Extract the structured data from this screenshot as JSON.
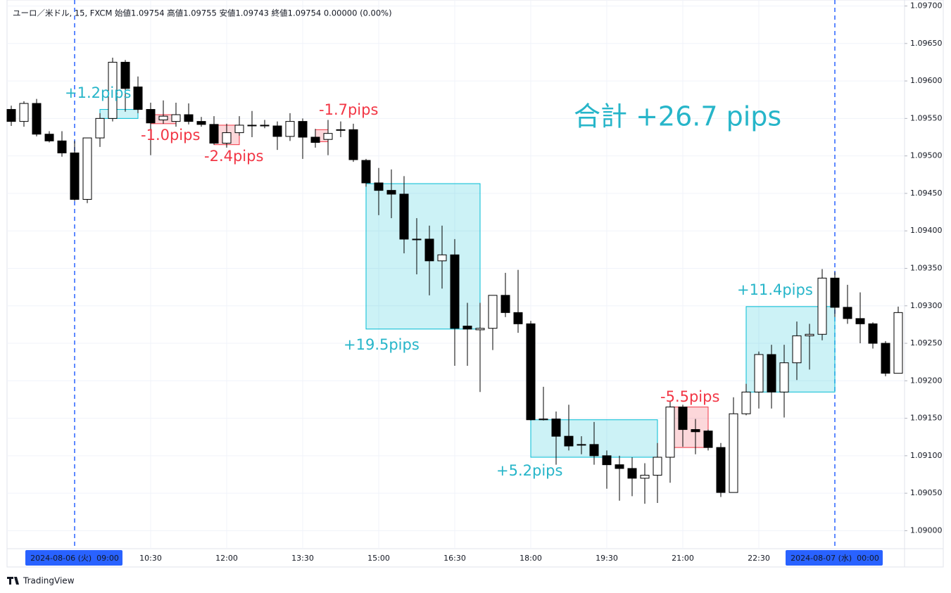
{
  "chart_data": {
    "type": "candlestick",
    "legend": "ユーロ／米ドル, 15, FXCM  始値1.09754  高値1.09755  安値1.09743  終値1.09754  0.00000 (0.00%)",
    "total": "合計 +26.7 pips",
    "branding": "TradingView",
    "categories": [
      null,
      null,
      null,
      null,
      null,
      "2024-08-06 (火)  09:00",
      null,
      null,
      null,
      null,
      null,
      "10:30",
      null,
      null,
      null,
      null,
      null,
      "12:00",
      null,
      null,
      null,
      null,
      null,
      "13:30",
      null,
      null,
      null,
      null,
      null,
      "15:00",
      null,
      null,
      null,
      null,
      null,
      "16:30",
      null,
      null,
      null,
      null,
      null,
      "18:00",
      null,
      null,
      null,
      null,
      null,
      "19:30",
      null,
      null,
      null,
      null,
      null,
      "21:00",
      null,
      null,
      null,
      null,
      null,
      "22:30",
      null,
      null,
      null,
      null,
      null,
      "2024-08-07 (水)  00:00",
      null,
      null,
      null,
      null,
      null
    ],
    "open": [
      1.09562,
      1.09546,
      1.0957,
      1.09529,
      1.0952,
      1.09504,
      1.09442,
      1.09524,
      1.0955,
      1.09625,
      1.09592,
      1.09562,
      1.09548,
      1.09546,
      1.09555,
      1.09546,
      1.09542,
      1.09517,
      1.09531,
      1.09541,
      1.09541,
      1.0954,
      1.09526,
      1.09546,
      1.09525,
      1.09522,
      1.09535,
      1.09535,
      1.09494,
      1.09464,
      1.09454,
      1.09449,
      1.09389,
      1.09389,
      1.0936,
      1.09368,
      1.09273,
      1.09268,
      1.0927,
      1.09314,
      1.09291,
      1.09276,
      1.09148,
      1.09149,
      1.09126,
      1.09115,
      1.09115,
      1.091,
      1.09088,
      1.09083,
      1.0907,
      1.09074,
      1.09098,
      1.09165,
      1.09135,
      1.09133,
      1.09111,
      1.09051,
      1.09156,
      1.09185,
      1.09235,
      1.09185,
      1.09224,
      1.0926,
      1.09262,
      1.09337,
      1.09298,
      1.09283,
      1.09276,
      1.0925,
      1.0921
    ],
    "high": [
      1.09567,
      1.09573,
      1.09576,
      1.09533,
      1.09533,
      1.0952,
      1.09524,
      1.09557,
      1.09631,
      1.09628,
      1.09606,
      1.09571,
      1.09574,
      1.09571,
      1.0957,
      1.09552,
      1.09553,
      1.09543,
      1.09553,
      1.0956,
      1.09548,
      1.09546,
      1.09557,
      1.0955,
      1.09536,
      1.09548,
      1.09546,
      1.09543,
      1.09496,
      1.09484,
      1.09482,
      1.09473,
      1.09417,
      1.09407,
      1.09407,
      1.09389,
      1.09304,
      1.09304,
      1.09314,
      1.09344,
      1.09348,
      1.0928,
      1.09192,
      1.09159,
      1.09168,
      1.09126,
      1.09145,
      1.09107,
      1.091,
      1.09098,
      1.0909,
      1.09117,
      1.09173,
      1.09168,
      1.09149,
      1.09135,
      1.09117,
      1.09178,
      1.09196,
      1.09239,
      1.09248,
      1.09248,
      1.09279,
      1.09276,
      1.09349,
      1.09345,
      1.09328,
      1.09318,
      1.09278,
      1.09253,
      1.09299
    ],
    "low": [
      1.0954,
      1.09539,
      1.09526,
      1.09518,
      1.09499,
      1.0944,
      1.09437,
      1.09512,
      1.09546,
      1.09559,
      1.09557,
      1.09501,
      1.09543,
      1.09539,
      1.09542,
      1.09539,
      1.09515,
      1.09511,
      1.09527,
      1.09525,
      1.09537,
      1.09508,
      1.0952,
      1.09496,
      1.09511,
      1.09501,
      1.09525,
      1.09492,
      1.09459,
      1.09421,
      1.09417,
      1.0937,
      1.09342,
      1.09314,
      1.09323,
      1.0922,
      1.0922,
      1.09185,
      1.09241,
      1.09285,
      1.09264,
      1.09147,
      1.09147,
      1.09088,
      1.09107,
      1.09102,
      1.09088,
      1.09056,
      1.0904,
      1.09046,
      1.09036,
      1.09037,
      1.09064,
      1.09112,
      1.09102,
      1.09107,
      1.09045,
      1.09051,
      1.09154,
      1.09163,
      1.09163,
      1.09151,
      1.09201,
      1.09215,
      1.09254,
      1.09285,
      1.09276,
      1.0925,
      1.09243,
      1.09206,
      1.0921
    ],
    "close": [
      1.09546,
      1.0957,
      1.09529,
      1.0952,
      1.09504,
      1.09442,
      1.09524,
      1.0955,
      1.09625,
      1.0959,
      1.09562,
      1.09544,
      1.09553,
      1.09555,
      1.09546,
      1.09542,
      1.09517,
      1.09531,
      1.09541,
      1.09541,
      1.0954,
      1.09526,
      1.09546,
      1.09525,
      1.09518,
      1.0953,
      1.09535,
      1.09495,
      1.09464,
      1.09454,
      1.09449,
      1.09389,
      1.09389,
      1.0936,
      1.09368,
      1.0927,
      1.09269,
      1.0927,
      1.09314,
      1.09291,
      1.09276,
      1.09148,
      1.09149,
      1.09126,
      1.09113,
      1.09115,
      1.091,
      1.09088,
      1.09083,
      1.0907,
      1.09074,
      1.09098,
      1.09165,
      1.09135,
      1.09132,
      1.09111,
      1.09051,
      1.09156,
      1.09185,
      1.09235,
      1.09185,
      1.09224,
      1.0926,
      1.09262,
      1.09337,
      1.09298,
      1.09283,
      1.09276,
      1.0925,
      1.0921,
      1.09291
    ],
    "ylim": [
      1.08976,
      1.09708
    ],
    "yticks": [
      {
        "value": 1.09,
        "label": "1.09000"
      },
      {
        "value": 1.0905,
        "label": "1.09050"
      },
      {
        "value": 1.091,
        "label": "1.09100"
      },
      {
        "value": 1.0915,
        "label": "1.09150"
      },
      {
        "value": 1.092,
        "label": "1.09200"
      },
      {
        "value": 1.0925,
        "label": "1.09250"
      },
      {
        "value": 1.093,
        "label": "1.09300"
      },
      {
        "value": 1.0935,
        "label": "1.09350"
      },
      {
        "value": 1.094,
        "label": "1.09400"
      },
      {
        "value": 1.0945,
        "label": "1.09450"
      },
      {
        "value": 1.095,
        "label": "1.09500"
      },
      {
        "value": 1.0955,
        "label": "1.09550"
      },
      {
        "value": 1.096,
        "label": "1.09600"
      },
      {
        "value": 1.0965,
        "label": "1.09650"
      },
      {
        "value": 1.097,
        "label": "1.09700"
      }
    ],
    "grid": true,
    "trades": [
      {
        "label": "+1.2pips",
        "high": 1.09562,
        "low": 1.0955,
        "color": "#00bcd4"
      },
      {
        "label": "-1.0pips",
        "high": 1.09555,
        "low": 1.09543,
        "color": "#f23645"
      },
      {
        "label": "-2.4pips",
        "high": 1.09541,
        "low": 1.09515,
        "color": "#f23645"
      },
      {
        "label": "-1.7pips",
        "high": 1.09535,
        "low": 1.09519,
        "color": "#f23645"
      },
      {
        "label": "+19.5pips",
        "high": 1.09463,
        "low": 1.09269,
        "color": "#00bcd4"
      },
      {
        "label": "+5.2pips",
        "high": 1.09148,
        "low": 1.09098,
        "color": "#00bcd4"
      },
      {
        "label": "-5.5pips",
        "high": 1.09165,
        "low": 1.09111,
        "color": "#f23645"
      },
      {
        "label": "+11.4pips",
        "high": 1.09299,
        "low": 1.09185,
        "color": "#00bcd4"
      }
    ]
  }
}
